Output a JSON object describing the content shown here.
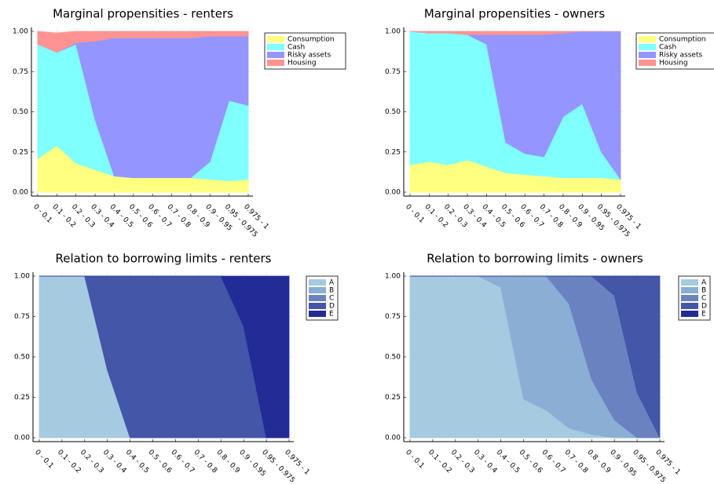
{
  "chart_data": [
    {
      "type": "area",
      "stacked": true,
      "grid": true,
      "legend": "top-right",
      "title": "Marginal propensities - renters",
      "categories": [
        "0 - 0.1",
        "0.1 - 0.2",
        "0.2 - 0.3",
        "0.3 - 0.4",
        "0.4 - 0.5",
        "0.5 - 0.6",
        "0.6 - 0.7",
        "0.7 - 0.8",
        "0.8 - 0.9",
        "0.9 - 0.95",
        "0.95 - 0.975",
        "0.975 - 1"
      ],
      "series": [
        {
          "name": "Consumption",
          "color": "#ffff80",
          "values": [
            0.21,
            0.29,
            0.18,
            0.14,
            0.1,
            0.09,
            0.09,
            0.09,
            0.09,
            0.08,
            0.07,
            0.08
          ]
        },
        {
          "name": "Cash",
          "color": "#80ffff",
          "values": [
            0.71,
            0.58,
            0.74,
            0.31,
            0,
            0,
            0,
            0,
            0,
            0.11,
            0.5,
            0.46
          ]
        },
        {
          "name": "Risky assets",
          "color": "#9595ff",
          "values": [
            0,
            0,
            0.01,
            0.49,
            0.86,
            0.87,
            0.87,
            0.87,
            0.87,
            0.78,
            0.4,
            0.43
          ]
        },
        {
          "name": "Housing",
          "color": "#ff9393",
          "values": [
            0.08,
            0.12,
            0.07,
            0.06,
            0.04,
            0.04,
            0.04,
            0.04,
            0.04,
            0.03,
            0.03,
            0.03
          ]
        }
      ],
      "ylim": [
        0,
        1
      ],
      "yticks": [
        {
          "value": 0,
          "label": "0.00"
        },
        {
          "value": 0.25,
          "label": "0.25"
        },
        {
          "value": 0.5,
          "label": "0.50"
        },
        {
          "value": 0.75,
          "label": "0.75"
        },
        {
          "value": 1,
          "label": "1.00"
        }
      ]
    },
    {
      "type": "area",
      "stacked": true,
      "grid": true,
      "legend": "top-right",
      "title": "Marginal propensities - owners",
      "categories": [
        "0 - 0.1",
        "0.1 - 0.2",
        "0.2 - 0.3",
        "0.3 - 0.4",
        "0.4 - 0.5",
        "0.5 - 0.6",
        "0.6 - 0.7",
        "0.7 - 0.8",
        "0.8 - 0.9",
        "0.9 - 0.95",
        "0.95 - 0.975",
        "0.975 - 1"
      ],
      "series": [
        {
          "name": "Consumption",
          "color": "#ffff80",
          "values": [
            0.17,
            0.19,
            0.17,
            0.2,
            0.16,
            0.12,
            0.11,
            0.1,
            0.09,
            0.09,
            0.09,
            0.08
          ]
        },
        {
          "name": "Cash",
          "color": "#80ffff",
          "values": [
            0.83,
            0.8,
            0.82,
            0.78,
            0.76,
            0.19,
            0.13,
            0.12,
            0.38,
            0.46,
            0.16,
            0
          ]
        },
        {
          "name": "Risky assets",
          "color": "#9595ff",
          "values": [
            0,
            0,
            0,
            0,
            0.06,
            0.67,
            0.74,
            0.76,
            0.52,
            0.45,
            0.75,
            0.92
          ]
        },
        {
          "name": "Housing",
          "color": "#ff9393",
          "values": [
            0,
            0.01,
            0.01,
            0.02,
            0.02,
            0.02,
            0.02,
            0.02,
            0.01,
            0,
            0,
            0
          ]
        }
      ],
      "ylim": [
        0,
        1
      ],
      "yticks": [
        {
          "value": 0,
          "label": "0.00"
        },
        {
          "value": 0.25,
          "label": "0.25"
        },
        {
          "value": 0.5,
          "label": "0.50"
        },
        {
          "value": 0.75,
          "label": "0.75"
        },
        {
          "value": 1,
          "label": "1.00"
        }
      ]
    },
    {
      "type": "area",
      "stacked": true,
      "grid": true,
      "legend": "top-right",
      "title": "Relation to borrowing limits - renters",
      "categories": [
        "0 - 0.1",
        "0.1 - 0.2",
        "0.2 - 0.3",
        "0.3 - 0.4",
        "0.4 - 0.5",
        "0.5 - 0.6",
        "0.6 - 0.7",
        "0.7 - 0.8",
        "0.8 - 0.9",
        "0.9 - 0.95",
        "0.95 - 0.975",
        "0.975 - 1"
      ],
      "series": [
        {
          "name": "A",
          "color": "#a6cadf",
          "values": [
            1,
            1,
            1,
            0.42,
            0,
            0,
            0,
            0,
            0,
            0,
            0,
            0
          ]
        },
        {
          "name": "B",
          "color": "#8aaed4",
          "values": [
            0,
            0,
            0,
            0,
            0,
            0,
            0,
            0,
            0,
            0,
            0,
            0
          ]
        },
        {
          "name": "C",
          "color": "#6a83c0",
          "values": [
            0,
            0,
            0,
            0,
            0,
            0,
            0,
            0,
            0,
            0,
            0,
            0
          ]
        },
        {
          "name": "D",
          "color": "#4356a8",
          "values": [
            0,
            0,
            0,
            0.58,
            1,
            1,
            1,
            1,
            1,
            0.69,
            0,
            0
          ]
        },
        {
          "name": "E",
          "color": "#232b96",
          "values": [
            0,
            0,
            0,
            0,
            0,
            0,
            0,
            0,
            0,
            0.31,
            1,
            1
          ]
        }
      ],
      "ylim": [
        0,
        1
      ],
      "yticks": [
        {
          "value": 0,
          "label": "0.00"
        },
        {
          "value": 0.25,
          "label": "0.25"
        },
        {
          "value": 0.5,
          "label": "0.50"
        },
        {
          "value": 0.75,
          "label": "0.75"
        },
        {
          "value": 1,
          "label": "1.00"
        }
      ]
    },
    {
      "type": "area",
      "stacked": true,
      "grid": true,
      "legend": "top-right",
      "title": "Relation to borrowing limits - owners",
      "categories": [
        "0 - 0.1",
        "0.1 - 0.2",
        "0.2 - 0.3",
        "0.3 - 0.4",
        "0.4 - 0.5",
        "0.5 - 0.6",
        "0.6 - 0.7",
        "0.7 - 0.8",
        "0.8 - 0.9",
        "0.9 - 0.95",
        "0.95 - 0.975",
        "0.975 - 1"
      ],
      "series": [
        {
          "name": "A",
          "color": "#a6cadf",
          "values": [
            1,
            1,
            1,
            1,
            0.93,
            0.24,
            0.17,
            0.06,
            0.02,
            0,
            0,
            0
          ]
        },
        {
          "name": "B",
          "color": "#8aaed4",
          "values": [
            0,
            0,
            0,
            0,
            0.07,
            0.76,
            0.83,
            0.77,
            0.34,
            0.11,
            0,
            0
          ]
        },
        {
          "name": "C",
          "color": "#6a83c0",
          "values": [
            0,
            0,
            0,
            0,
            0,
            0,
            0,
            0.17,
            0.64,
            0.77,
            0.28,
            0
          ]
        },
        {
          "name": "D",
          "color": "#4356a8",
          "values": [
            0,
            0,
            0,
            0,
            0,
            0,
            0,
            0,
            0,
            0.12,
            0.72,
            1
          ]
        },
        {
          "name": "E",
          "color": "#232b96",
          "values": [
            0,
            0,
            0,
            0,
            0,
            0,
            0,
            0,
            0,
            0,
            0,
            0
          ]
        }
      ],
      "ylim": [
        0,
        1
      ],
      "yticks": [
        {
          "value": 0,
          "label": "0.00"
        },
        {
          "value": 0.25,
          "label": "0.25"
        },
        {
          "value": 0.5,
          "label": "0.50"
        },
        {
          "value": 0.75,
          "label": "0.75"
        },
        {
          "value": 1,
          "label": "1.00"
        }
      ]
    }
  ]
}
